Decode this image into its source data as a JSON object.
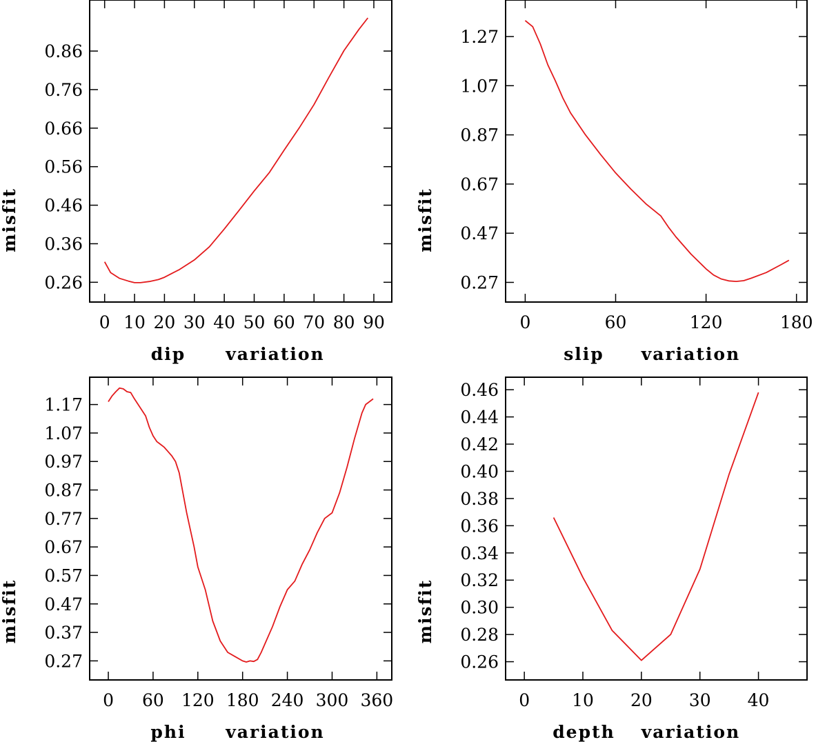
{
  "line_color": "#e31a1c",
  "chart_data": [
    {
      "type": "line",
      "xlabel_left": "dip",
      "xlabel_right": "variation",
      "ylabel": "misfit",
      "xlim": [
        -5,
        96
      ],
      "ylim": [
        0.2087,
        0.9925
      ],
      "x_ticks": [
        0,
        10,
        20,
        30,
        40,
        50,
        60,
        70,
        80,
        90
      ],
      "y_ticks": [
        0.26,
        0.36,
        0.46,
        0.56,
        0.66,
        0.76,
        0.86
      ],
      "x_tick_labels": [
        "0",
        "10",
        "20",
        "30",
        "40",
        "50",
        "60",
        "70",
        "80",
        "90"
      ],
      "y_tick_labels": [
        "0.26",
        "0.36",
        "0.46",
        "0.56",
        "0.66",
        "0.76",
        "0.86"
      ],
      "series": [
        {
          "x": [
            0,
            2,
            5,
            8,
            10,
            12,
            15,
            18,
            20,
            22,
            25,
            30,
            35,
            40,
            45,
            50,
            55,
            60,
            65,
            70,
            75,
            80,
            85,
            88
          ],
          "y": [
            0.313,
            0.285,
            0.27,
            0.263,
            0.259,
            0.259,
            0.262,
            0.267,
            0.273,
            0.281,
            0.293,
            0.318,
            0.352,
            0.398,
            0.447,
            0.497,
            0.544,
            0.603,
            0.66,
            0.721,
            0.792,
            0.861,
            0.916,
            0.946
          ]
        }
      ]
    },
    {
      "type": "line",
      "xlabel_left": "slip",
      "xlabel_right": "variation",
      "ylabel": "misfit",
      "xlim": [
        -13,
        187
      ],
      "ylim": [
        0.19,
        1.4186
      ],
      "x_ticks": [
        0,
        60,
        120,
        180
      ],
      "y_ticks": [
        0.27,
        0.47,
        0.67,
        0.87,
        1.07,
        1.27
      ],
      "x_tick_labels": [
        "0",
        "60",
        "120",
        "180"
      ],
      "y_tick_labels": [
        "0.27",
        "0.47",
        "0.67",
        "0.87",
        "1.07",
        "1.27"
      ],
      "series": [
        {
          "x": [
            0,
            5,
            10,
            15,
            20,
            25,
            30,
            40,
            50,
            60,
            70,
            80,
            90,
            95,
            100,
            110,
            120,
            125,
            130,
            135,
            140,
            145,
            150,
            160,
            170,
            175
          ],
          "y": [
            1.335,
            1.31,
            1.24,
            1.155,
            1.09,
            1.02,
            0.96,
            0.87,
            0.79,
            0.715,
            0.65,
            0.59,
            0.54,
            0.495,
            0.455,
            0.385,
            0.325,
            0.3,
            0.284,
            0.276,
            0.274,
            0.277,
            0.287,
            0.31,
            0.343,
            0.36
          ]
        }
      ]
    },
    {
      "type": "line",
      "xlabel_left": "phi",
      "xlabel_right": "variation",
      "ylabel": "misfit",
      "xlim": [
        -25,
        380
      ],
      "ylim": [
        0.2031,
        1.2659
      ],
      "x_ticks": [
        0,
        60,
        120,
        180,
        240,
        300,
        360
      ],
      "y_ticks": [
        0.27,
        0.37,
        0.47,
        0.57,
        0.67,
        0.77,
        0.87,
        0.97,
        1.07,
        1.17
      ],
      "x_tick_labels": [
        "0",
        "60",
        "120",
        "180",
        "240",
        "300",
        "360"
      ],
      "y_tick_labels": [
        "0.27",
        "0.37",
        "0.47",
        "0.57",
        "0.67",
        "0.77",
        "0.87",
        "0.97",
        "1.07",
        "1.17"
      ],
      "series": [
        {
          "x": [
            0,
            5,
            10,
            15,
            20,
            25,
            30,
            35,
            40,
            45,
            50,
            55,
            60,
            65,
            70,
            75,
            80,
            85,
            90,
            95,
            100,
            105,
            110,
            115,
            120,
            130,
            140,
            150,
            160,
            170,
            180,
            185,
            190,
            195,
            200,
            205,
            210,
            220,
            230,
            240,
            250,
            260,
            270,
            280,
            290,
            300,
            310,
            320,
            330,
            340,
            345,
            350,
            355
          ],
          "y": [
            1.18,
            1.2,
            1.215,
            1.228,
            1.225,
            1.215,
            1.212,
            1.19,
            1.17,
            1.15,
            1.13,
            1.09,
            1.06,
            1.04,
            1.03,
            1.02,
            1.005,
            0.99,
            0.97,
            0.93,
            0.86,
            0.79,
            0.73,
            0.67,
            0.6,
            0.52,
            0.41,
            0.34,
            0.3,
            0.285,
            0.27,
            0.266,
            0.27,
            0.268,
            0.275,
            0.3,
            0.33,
            0.39,
            0.46,
            0.52,
            0.55,
            0.61,
            0.66,
            0.72,
            0.77,
            0.79,
            0.86,
            0.95,
            1.05,
            1.14,
            1.17,
            1.18,
            1.19
          ]
        }
      ]
    },
    {
      "type": "line",
      "xlabel_left": "depth",
      "xlabel_right": "variation",
      "ylabel": "misfit",
      "xlim": [
        -3.2,
        48.3
      ],
      "ylim": [
        0.2466,
        0.4692
      ],
      "x_ticks": [
        0,
        10,
        20,
        30,
        40
      ],
      "y_ticks": [
        0.26,
        0.28,
        0.3,
        0.32,
        0.34,
        0.36,
        0.38,
        0.4,
        0.42,
        0.44,
        0.46
      ],
      "x_tick_labels": [
        "0",
        "10",
        "20",
        "30",
        "40"
      ],
      "y_tick_labels": [
        "0.26",
        "0.28",
        "0.30",
        "0.32",
        "0.34",
        "0.36",
        "0.38",
        "0.40",
        "0.42",
        "0.44",
        "0.46"
      ],
      "series": [
        {
          "x": [
            5,
            10,
            15,
            20,
            25,
            30,
            35,
            40
          ],
          "y": [
            0.366,
            0.322,
            0.283,
            0.261,
            0.28,
            0.328,
            0.398,
            0.458
          ]
        }
      ]
    }
  ]
}
